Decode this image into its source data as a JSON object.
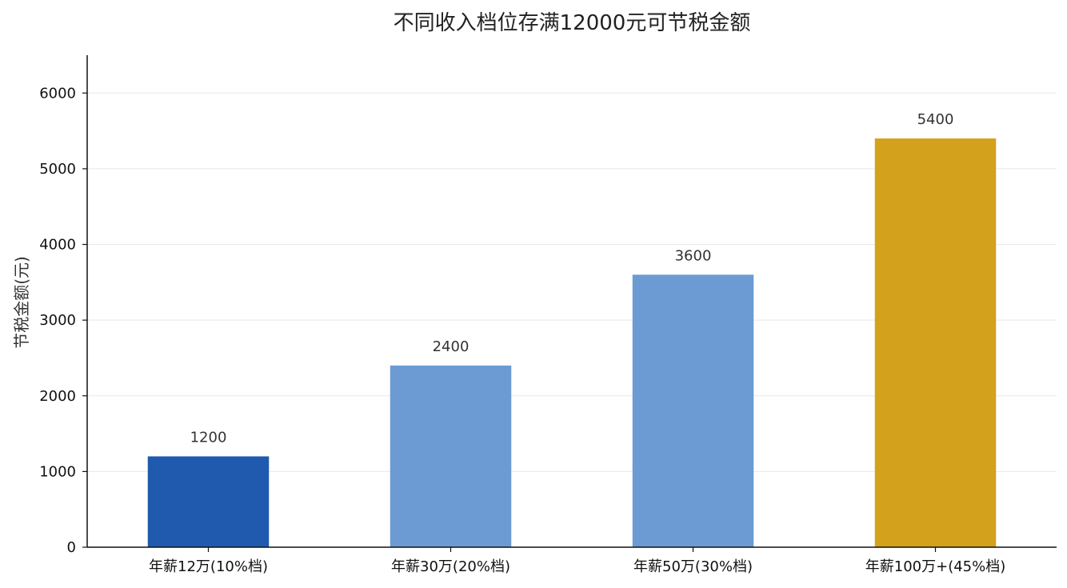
{
  "chart_data": {
    "type": "bar",
    "title": "不同收入档位存满12000元可节税金额",
    "xlabel": "",
    "ylabel": "节税金额(元)",
    "categories": [
      "年薪12万(10%档)",
      "年薪30万(20%档)",
      "年薪50万(30%档)",
      "年薪100万+(45%档)"
    ],
    "values": [
      1200,
      2400,
      3600,
      5400
    ],
    "data_labels": [
      "1200",
      "2400",
      "3600",
      "5400"
    ],
    "bar_colors": [
      "#1f5aae",
      "#6b9bd2",
      "#6b9bd2",
      "#d4a11c"
    ],
    "ylim": [
      0,
      6500
    ],
    "yticks": [
      0,
      1000,
      2000,
      3000,
      4000,
      5000,
      6000
    ],
    "ytick_labels": [
      "0",
      "1000",
      "2000",
      "3000",
      "4000",
      "5000",
      "6000"
    ],
    "grid": true,
    "grid_axis": "y",
    "legend": "none"
  }
}
